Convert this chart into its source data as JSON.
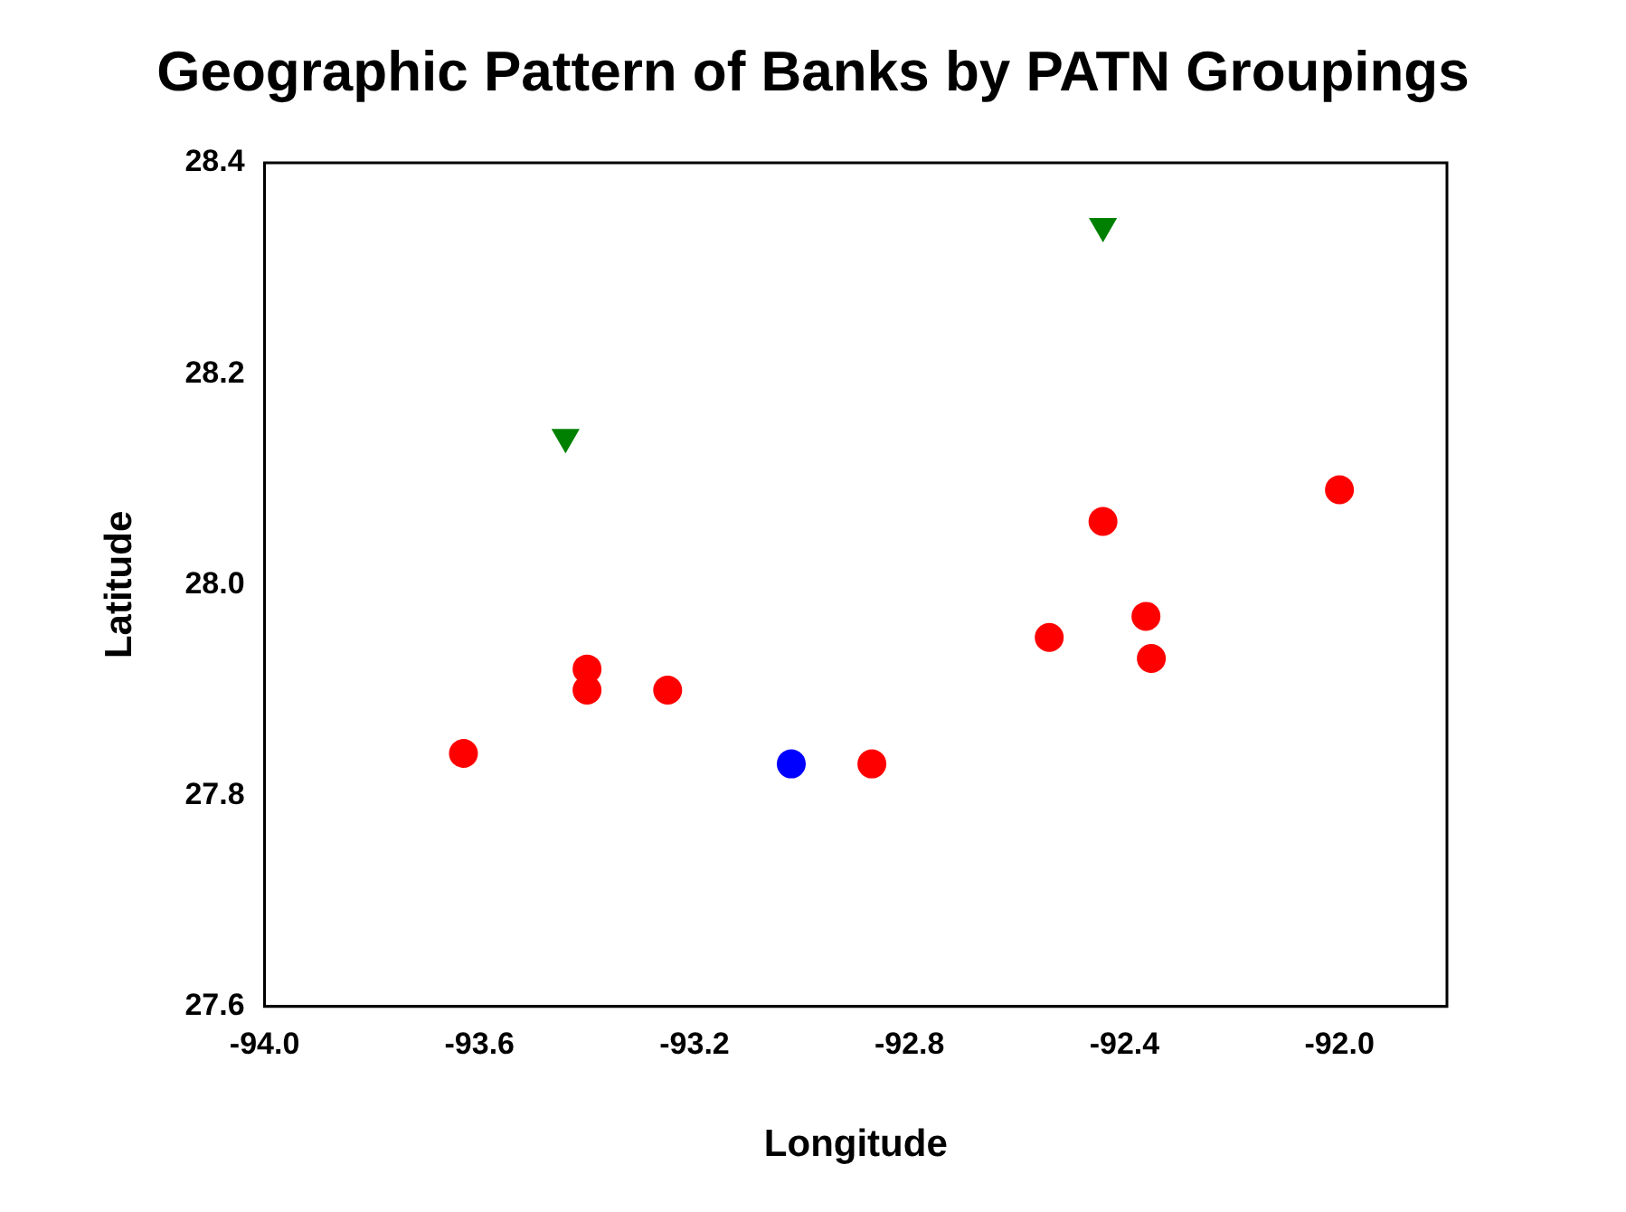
{
  "chart_data": {
    "type": "scatter",
    "title": "Geographic Pattern of Banks by PATN Groupings",
    "xlabel": "Longitude",
    "ylabel": "Latitude",
    "xlim": [
      -94.0,
      -91.8
    ],
    "xticks": [
      {
        "value": -94.0,
        "label": "-94.0"
      },
      {
        "value": -93.6,
        "label": "-93.6"
      },
      {
        "value": -93.2,
        "label": "-93.2"
      },
      {
        "value": -92.8,
        "label": "-92.8"
      },
      {
        "value": -92.4,
        "label": "-92.4"
      },
      {
        "value": -92.0,
        "label": "-92.0"
      }
    ],
    "ylim": [
      27.6,
      28.4
    ],
    "yticks": [
      {
        "value": 27.6,
        "label": "27.6"
      },
      {
        "value": 27.8,
        "label": "27.8"
      },
      {
        "value": 28.0,
        "label": "28.0"
      },
      {
        "value": 28.2,
        "label": "28.2"
      },
      {
        "value": 28.4,
        "label": "28.4"
      }
    ],
    "grid": false,
    "legend": false,
    "series": [
      {
        "color": "#ff0000",
        "marker": "circle",
        "x": [
          -93.63,
          -93.4,
          -93.4,
          -93.25,
          -92.87,
          -92.54,
          -92.44,
          -92.36,
          -92.35,
          -92.0
        ],
        "values": [
          27.84,
          27.92,
          27.9,
          27.9,
          27.83,
          27.95,
          28.06,
          27.97,
          27.93,
          28.09
        ]
      },
      {
        "color": "#0000ff",
        "marker": "circle",
        "x": [
          -93.02
        ],
        "values": [
          27.83
        ]
      },
      {
        "color": "#008000",
        "marker": "triangle",
        "x": [
          -93.44,
          -92.44
        ],
        "values": [
          28.14,
          28.34
        ]
      }
    ]
  }
}
